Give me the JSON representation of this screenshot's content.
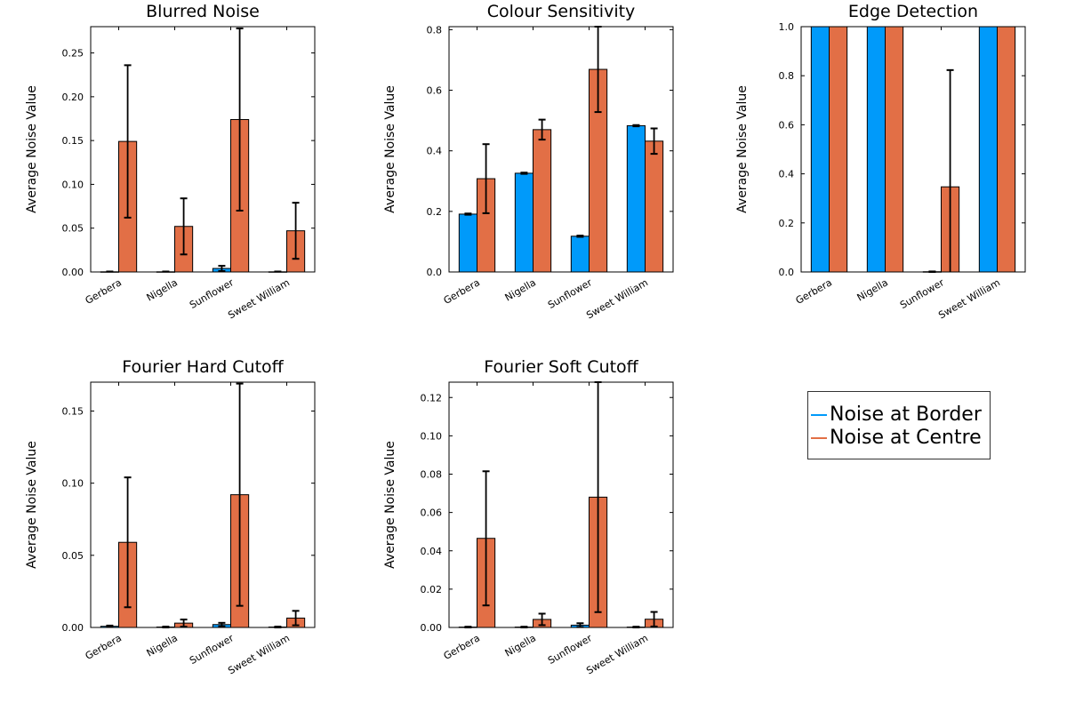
{
  "colors": {
    "border": "#009AFA",
    "centre": "#E26F46"
  },
  "legend": [
    {
      "label": "Noise at Border",
      "color": "#009AFA"
    },
    {
      "label": "Noise at Centre",
      "color": "#E26F46"
    }
  ],
  "chart_data": [
    {
      "type": "bar",
      "title": "Blurred Noise",
      "ylabel": "Average Noise Value",
      "categories": [
        "Gerbera",
        "Nigella",
        "Sunflower",
        "Sweet William"
      ],
      "ylim": [
        0,
        0.28
      ],
      "yticks": [
        "0.00",
        "0.05",
        "0.10",
        "0.15",
        "0.20",
        "0.25"
      ],
      "series": [
        {
          "name": "Noise at Border",
          "values": [
            0.0002,
            0.0002,
            0.004,
            0.0002
          ],
          "err": [
            0.0003,
            0.0003,
            0.003,
            0.0003
          ]
        },
        {
          "name": "Noise at Centre",
          "values": [
            0.149,
            0.052,
            0.174,
            0.047
          ],
          "err": [
            0.087,
            0.032,
            0.104,
            0.032
          ]
        }
      ]
    },
    {
      "type": "bar",
      "title": "Colour Sensitivity",
      "ylabel": "Average Noise Value",
      "categories": [
        "Gerbera",
        "Nigella",
        "Sunflower",
        "Sweet William"
      ],
      "ylim": [
        0,
        0.81
      ],
      "yticks": [
        "0.0",
        "0.2",
        "0.4",
        "0.6",
        "0.8"
      ],
      "series": [
        {
          "name": "Noise at Border",
          "values": [
            0.191,
            0.326,
            0.118,
            0.483
          ],
          "err": [
            0.002,
            0.002,
            0.002,
            0.002
          ]
        },
        {
          "name": "Noise at Centre",
          "values": [
            0.308,
            0.47,
            0.669,
            0.432
          ],
          "err": [
            0.114,
            0.033,
            0.141,
            0.042
          ]
        }
      ]
    },
    {
      "type": "bar",
      "title": "Edge Detection",
      "ylabel": "Average Noise Value",
      "categories": [
        "Gerbera",
        "Nigella",
        "Sunflower",
        "Sweet William"
      ],
      "ylim": [
        0,
        1.0
      ],
      "yticks": [
        "0.0",
        "0.2",
        "0.4",
        "0.6",
        "0.8",
        "1.0"
      ],
      "series": [
        {
          "name": "Noise at Border",
          "values": [
            1.0,
            1.0,
            0.001,
            1.0
          ],
          "err": [
            0,
            0,
            0.001,
            0
          ]
        },
        {
          "name": "Noise at Centre",
          "values": [
            1.0,
            1.0,
            0.347,
            1.0
          ],
          "err": [
            0,
            0,
            0.476,
            0
          ]
        }
      ]
    },
    {
      "type": "bar",
      "title": "Fourier Hard Cutoff",
      "ylabel": "Average Noise Value",
      "categories": [
        "Gerbera",
        "Nigella",
        "Sunflower",
        "Sweet William"
      ],
      "ylim": [
        0,
        0.17
      ],
      "yticks": [
        "0.00",
        "0.05",
        "0.10",
        "0.15"
      ],
      "series": [
        {
          "name": "Noise at Border",
          "values": [
            0.0008,
            0.0003,
            0.002,
            0.0003
          ],
          "err": [
            0.0005,
            0.0003,
            0.0012,
            0.0003
          ]
        },
        {
          "name": "Noise at Centre",
          "values": [
            0.059,
            0.003,
            0.092,
            0.0065
          ],
          "err": [
            0.045,
            0.0025,
            0.077,
            0.005
          ]
        }
      ]
    },
    {
      "type": "bar",
      "title": "Fourier Soft Cutoff",
      "ylabel": "Average Noise Value",
      "categories": [
        "Gerbera",
        "Nigella",
        "Sunflower",
        "Sweet William"
      ],
      "ylim": [
        0,
        0.128
      ],
      "yticks": [
        "0.00",
        "0.02",
        "0.04",
        "0.06",
        "0.08",
        "0.10",
        "0.12"
      ],
      "series": [
        {
          "name": "Noise at Border",
          "values": [
            0.0002,
            0.0002,
            0.0012,
            0.0002
          ],
          "err": [
            0.0002,
            0.0002,
            0.001,
            0.0002
          ]
        },
        {
          "name": "Noise at Centre",
          "values": [
            0.0465,
            0.0042,
            0.068,
            0.0043
          ],
          "err": [
            0.035,
            0.003,
            0.06,
            0.0038
          ]
        }
      ]
    }
  ]
}
